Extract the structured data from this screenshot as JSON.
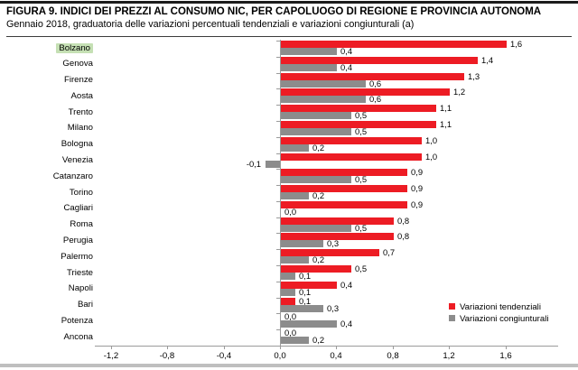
{
  "header": {
    "title": "FIGURA 9. INDICI DEI PREZZI AL CONSUMO NIC, PER CAPOLUOGO DI REGIONE E PROVINCIA AUTONOMA",
    "subtitle": "Gennaio 2018, graduatoria delle variazioni percentuali tendenziali e variazioni congiunturali (a)"
  },
  "chart_data": {
    "type": "bar",
    "orientation": "horizontal",
    "title": "FIGURA 9. INDICI DEI PREZZI AL CONSUMO NIC, PER CAPOLUOGO DI REGIONE E PROVINCIA AUTONOMA",
    "subtitle": "Gennaio 2018, graduatoria delle variazioni percentuali tendenziali e variazioni congiunturali (a)",
    "categories": [
      "Bolzano",
      "Genova",
      "Firenze",
      "Aosta",
      "Trento",
      "Milano",
      "Bologna",
      "Venezia",
      "Catanzaro",
      "Torino",
      "Cagliari",
      "Roma",
      "Perugia",
      "Palermo",
      "Trieste",
      "Napoli",
      "Bari",
      "Potenza",
      "Ancona"
    ],
    "highlighted_category": "Bolzano",
    "highlight_color": "#c5e0b4",
    "series": [
      {
        "name": "Variazioni tendenziali",
        "color": "#ed1c24",
        "values": [
          1.6,
          1.4,
          1.3,
          1.2,
          1.1,
          1.1,
          1.0,
          1.0,
          0.9,
          0.9,
          0.9,
          0.8,
          0.8,
          0.7,
          0.5,
          0.4,
          0.1,
          0.0,
          0.0
        ]
      },
      {
        "name": "Variazioni congiunturali",
        "color": "#8c8c8c",
        "values": [
          0.4,
          0.4,
          0.6,
          0.6,
          0.5,
          0.5,
          0.2,
          -0.1,
          0.5,
          0.2,
          0.0,
          0.5,
          0.3,
          0.2,
          0.1,
          0.1,
          0.3,
          0.4,
          0.2
        ]
      }
    ],
    "x_ticks": [
      "-1,2",
      "-0,8",
      "-0,4",
      "0,0",
      "0,4",
      "0,8",
      "1,2",
      "1,6"
    ],
    "x_tick_values": [
      -1.2,
      -0.8,
      -0.4,
      0.0,
      0.4,
      0.8,
      1.2,
      1.6
    ],
    "xlim": [
      -1.3,
      2.0
    ],
    "grid": false,
    "legend_position": "middle-right",
    "value_label_format": "comma-decimal"
  }
}
